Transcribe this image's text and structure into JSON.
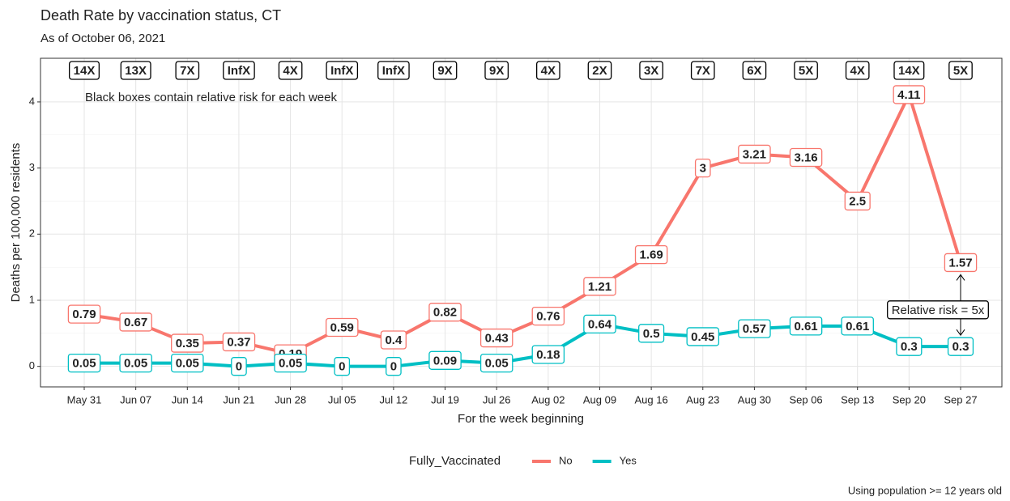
{
  "chart_data": {
    "type": "line",
    "title": "Death Rate by vaccination status, CT",
    "subtitle": "As of October 06, 2021",
    "x_label": "For the week beginning",
    "y_label": "Deaths per 100,000 residents",
    "categories": [
      "May 31",
      "Jun 07",
      "Jun 14",
      "Jun 21",
      "Jun 28",
      "Jul 05",
      "Jul 12",
      "Jul 19",
      "Jul 26",
      "Aug 02",
      "Aug 09",
      "Aug 16",
      "Aug 23",
      "Aug 30",
      "Sep 06",
      "Sep 13",
      "Sep 20",
      "Sep 27"
    ],
    "series": [
      {
        "name": "No",
        "color": "#f8766d",
        "values": [
          0.79,
          0.67,
          0.35,
          0.37,
          0.19,
          0.59,
          0.4,
          0.82,
          0.43,
          0.76,
          1.21,
          1.69,
          3,
          3.21,
          3.16,
          2.5,
          4.11,
          1.57
        ]
      },
      {
        "name": "Yes",
        "color": "#00bfc4",
        "values": [
          0.05,
          0.05,
          0.05,
          0,
          0.05,
          0,
          0,
          0.09,
          0.05,
          0.18,
          0.64,
          0.5,
          0.45,
          0.57,
          0.61,
          0.61,
          0.3,
          0.3
        ]
      }
    ],
    "relative_risk": [
      "14X",
      "13X",
      "7X",
      "InfX",
      "4X",
      "InfX",
      "InfX",
      "9X",
      "9X",
      "4X",
      "2X",
      "3X",
      "7X",
      "6X",
      "5X",
      "4X",
      "14X",
      "5X"
    ],
    "annotation": "Black boxes contain relative risk for each week",
    "arrow_label": "Relative risk = 5x",
    "legend_title": "Fully_Vaccinated",
    "caption": "Using population >= 12 years old",
    "ylim": [
      -0.31,
      4.66
    ],
    "yticks": [
      0,
      1,
      2,
      3,
      4
    ],
    "grid": true,
    "legend_position": "bottom"
  }
}
